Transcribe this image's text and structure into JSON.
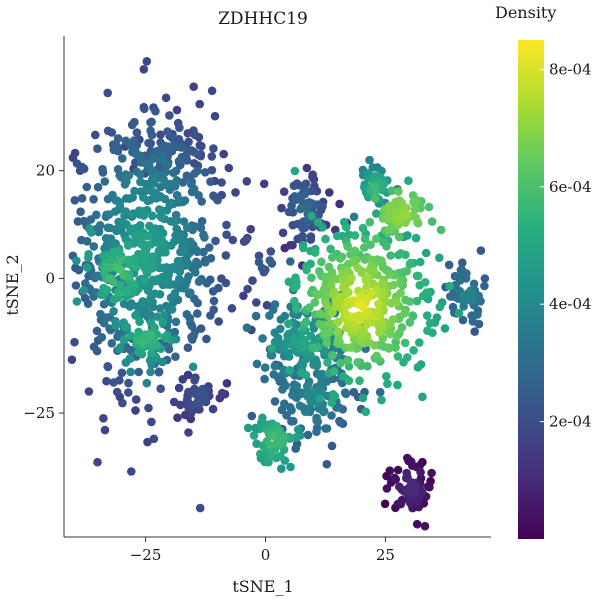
{
  "chart_data": {
    "type": "scatter",
    "title": "ZDHHC19",
    "xlabel": "tSNE_1",
    "ylabel": "tSNE_2",
    "xlim": [
      -42,
      47
    ],
    "ylim": [
      -48,
      45
    ],
    "x_ticks": [
      -25,
      0,
      25
    ],
    "x_tick_labels": [
      "-25",
      "0",
      "25"
    ],
    "y_ticks": [
      -25,
      0,
      20
    ],
    "y_tick_labels": [
      "-25",
      "0",
      "20"
    ],
    "grid": false,
    "color_by": "density",
    "colorbar": {
      "title": "Density",
      "range": [
        0,
        0.00085
      ],
      "ticks": [
        0.0002,
        0.0004,
        0.0006,
        0.0008
      ],
      "tick_labels": [
        "2e-04",
        "4e-04",
        "6e-04",
        "8e-04"
      ],
      "colormap": "viridis",
      "stops": [
        "#440154",
        "#472d7b",
        "#3b528b",
        "#2c728e",
        "#21918c",
        "#28ae80",
        "#5ec962",
        "#addc30",
        "#fde725"
      ]
    },
    "clusters": [
      {
        "cx": -25,
        "cy": 5,
        "sx": 8.5,
        "sy": 13,
        "n": 620,
        "density": [
          0.00018,
          0.0005
        ]
      },
      {
        "cx": -31,
        "cy": 1,
        "sx": 3.5,
        "sy": 3,
        "n": 70,
        "density": [
          0.00045,
          0.0006
        ]
      },
      {
        "cx": -25,
        "cy": -11,
        "sx": 3.5,
        "sy": 2.5,
        "n": 60,
        "density": [
          0.0004,
          0.00058
        ]
      },
      {
        "cx": -14,
        "cy": -22,
        "sx": 2.5,
        "sy": 2.5,
        "n": 45,
        "density": [
          0.00012,
          0.00022
        ]
      },
      {
        "cx": 0,
        "cy": 3,
        "sx": 0.8,
        "sy": 0.8,
        "n": 8,
        "density": [
          0.0002,
          0.0003
        ]
      },
      {
        "cx": 8,
        "cy": 13,
        "sx": 3,
        "sy": 4,
        "n": 70,
        "density": [
          0.00012,
          0.0003
        ]
      },
      {
        "cx": 20,
        "cy": -5,
        "sx": 7,
        "sy": 7,
        "n": 380,
        "density": [
          0.0005,
          0.00082
        ]
      },
      {
        "cx": 8,
        "cy": -12,
        "sx": 5,
        "sy": 4,
        "n": 140,
        "density": [
          0.0003,
          0.0005
        ]
      },
      {
        "cx": 10,
        "cy": -22,
        "sx": 4.5,
        "sy": 4,
        "n": 110,
        "density": [
          0.00025,
          0.0004
        ]
      },
      {
        "cx": 2,
        "cy": -30,
        "sx": 2.5,
        "sy": 2.5,
        "n": 55,
        "density": [
          0.00045,
          0.0006
        ]
      },
      {
        "cx": 23,
        "cy": 17,
        "sx": 2,
        "sy": 2,
        "n": 45,
        "density": [
          0.00035,
          0.0006
        ]
      },
      {
        "cx": 28,
        "cy": 12,
        "sx": 3,
        "sy": 2.2,
        "n": 60,
        "density": [
          0.0006,
          0.00072
        ]
      },
      {
        "cx": 42,
        "cy": -3,
        "sx": 2.2,
        "sy": 3,
        "n": 55,
        "density": [
          0.00025,
          0.00038
        ]
      },
      {
        "cx": 30,
        "cy": -39,
        "sx": 2.2,
        "sy": 2.5,
        "n": 70,
        "density": [
          2e-05,
          0.0001
        ]
      },
      {
        "cx": -20,
        "cy": 23,
        "sx": 4,
        "sy": 2.5,
        "n": 60,
        "density": [
          0.00018,
          0.00028
        ]
      }
    ]
  }
}
